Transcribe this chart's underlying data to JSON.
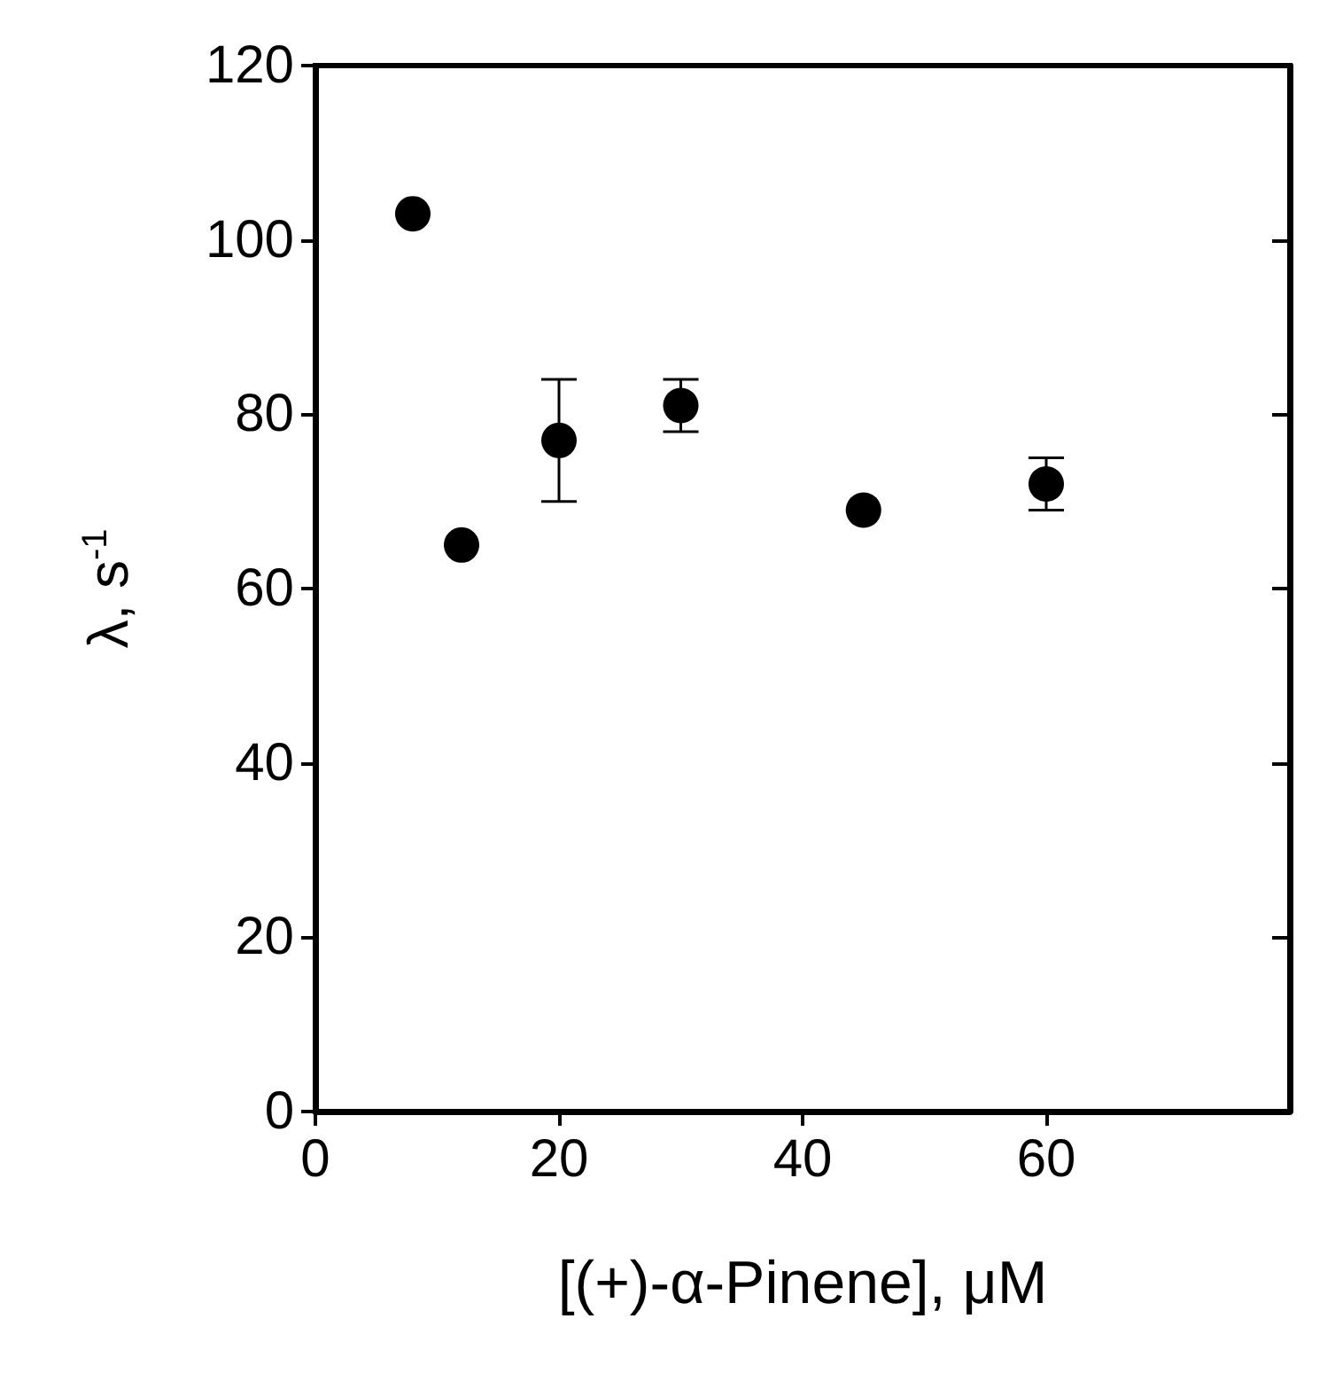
{
  "chart_data": {
    "type": "scatter",
    "xlabel": "[(+)-α-Pinene], μM",
    "ylabel": "λ, s$^{-1}$",
    "x": [
      8,
      12,
      20,
      30,
      45,
      60
    ],
    "values": [
      103,
      65,
      77,
      81,
      69,
      72
    ],
    "errors": [
      null,
      null,
      [
        70,
        84
      ],
      [
        78,
        84
      ],
      null,
      [
        69,
        75
      ]
    ],
    "color": "#000000",
    "marker": "circle",
    "xlim": [
      0,
      80
    ],
    "xticks": [
      0,
      20,
      40,
      60
    ],
    "ylim": [
      0,
      120
    ],
    "yticks": [
      0,
      20,
      40,
      60,
      80,
      100,
      120
    ],
    "grid": false
  }
}
